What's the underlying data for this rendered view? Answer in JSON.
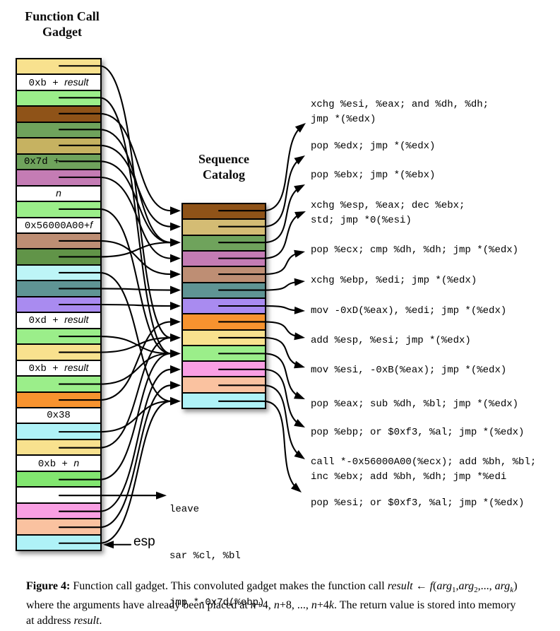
{
  "titles": {
    "left": [
      "Function Call",
      "Gadget"
    ],
    "catalog": [
      "Sequence",
      "Catalog"
    ]
  },
  "colors": {
    "line": "#000000",
    "yellow": "#F8E18E",
    "light_green": "#9BEE8A",
    "bright_green": "#82E670",
    "brown": "#8F5318",
    "med_green": "#6FA35C",
    "forest_green": "#619448",
    "khaki": "#C6B261",
    "tan": "#D4BC74",
    "orchid": "#C47CB4",
    "rosybrown": "#BE8E74",
    "teal": "#5F9494",
    "purple": "#A98BF0",
    "orange": "#F7932F",
    "cyan": "#AFF2F7",
    "light_cyan": "#BDF5F7",
    "pink": "#F99FE3",
    "peach": "#FAC2A0",
    "white": "#FFFFFF"
  },
  "left_stack": {
    "cells": [
      {
        "color": "yellow",
        "target": 9
      },
      {
        "color": "white",
        "label": [
          {
            "t": "0xb + "
          },
          {
            "t": "result",
            "v": true
          }
        ]
      },
      {
        "color": "light_green",
        "target": 10
      },
      {
        "color": "brown",
        "target": 1
      },
      {
        "color": "med_green",
        "target": 3
      },
      {
        "color": "khaki",
        "target": 2
      },
      {
        "color": "med_green",
        "label": [
          {
            "t": "0x7d +"
          }
        ],
        "target": 3,
        "label_left": true
      },
      {
        "color": "orchid",
        "target": 4
      },
      {
        "color": "white",
        "label": [
          {
            "t": "n",
            "v": true
          }
        ]
      },
      {
        "color": "light_green",
        "target": 10
      },
      {
        "color": "white",
        "label": [
          {
            "t": "0x56000A00+"
          },
          {
            "t": "f",
            "v": true
          }
        ]
      },
      {
        "color": "rosybrown",
        "target": 5
      },
      {
        "color": "forest_green",
        "target": 3
      },
      {
        "color": "light_cyan",
        "target": 13
      },
      {
        "color": "teal",
        "target": 6
      },
      {
        "color": "purple",
        "target": 7
      },
      {
        "color": "white",
        "label": [
          {
            "t": "0xd + "
          },
          {
            "t": "result",
            "v": true
          }
        ]
      },
      {
        "color": "light_green",
        "target": 10
      },
      {
        "color": "yellow",
        "target": 9
      },
      {
        "color": "white",
        "label": [
          {
            "t": "0xb + "
          },
          {
            "t": "result",
            "v": true
          }
        ]
      },
      {
        "color": "light_green",
        "target": 10
      },
      {
        "color": "orange",
        "target": 8
      },
      {
        "color": "white",
        "label": [
          {
            "t": "0x38"
          }
        ]
      },
      {
        "color": "cyan",
        "target": 13
      },
      {
        "color": "yellow",
        "target": 9
      },
      {
        "color": "white",
        "label": [
          {
            "t": "0xb + "
          },
          {
            "t": "n",
            "v": true
          }
        ]
      },
      {
        "color": "bright_green",
        "target": 10
      },
      {
        "color": "white",
        "target": "leave"
      },
      {
        "color": "pink",
        "target": 11
      },
      {
        "color": "peach",
        "target": 12
      },
      {
        "color": "cyan",
        "target": 13,
        "esp": true
      }
    ]
  },
  "catalog": {
    "rows": [
      {
        "color": "brown"
      },
      {
        "color": "tan"
      },
      {
        "color": "med_green"
      },
      {
        "color": "orchid"
      },
      {
        "color": "rosybrown"
      },
      {
        "color": "teal"
      },
      {
        "color": "purple"
      },
      {
        "color": "orange"
      },
      {
        "color": "yellow"
      },
      {
        "color": "light_green"
      },
      {
        "color": "pink"
      },
      {
        "color": "peach"
      },
      {
        "color": "cyan"
      }
    ]
  },
  "sequences": [
    {
      "lines": [
        "xchg %esi, %eax; and %dh, %dh;",
        "jmp *(%edx)"
      ]
    },
    {
      "lines": [
        "pop %edx; jmp *(%edx)"
      ]
    },
    {
      "lines": [
        "pop %ebx; jmp *(%ebx)"
      ]
    },
    {
      "lines": [
        "xchg %esp, %eax; dec %ebx;",
        "std; jmp *0(%esi)"
      ]
    },
    {
      "lines": [
        "pop %ecx; cmp %dh, %dh; jmp *(%edx)"
      ]
    },
    {
      "lines": [
        "xchg %ebp, %edi; jmp *(%edx)"
      ]
    },
    {
      "lines": [
        "mov -0xD(%eax), %edi; jmp *(%edx)"
      ]
    },
    {
      "lines": [
        "add %esp, %esi; jmp *(%edx)"
      ]
    },
    {
      "lines": [
        "mov %esi, -0xB(%eax); jmp *(%edx)"
      ]
    },
    {
      "lines": [
        "pop %eax; sub %dh, %bl; jmp *(%edx)"
      ]
    },
    {
      "lines": [
        "pop %ebp; or $0xf3, %al; jmp *(%edx)"
      ]
    },
    {
      "lines": [
        "call *-0x56000A00(%ecx); add %bh, %bl;",
        "inc %ebx; add %bh, %dh; jmp *%edi"
      ]
    },
    {
      "lines": [
        "pop %esi; or $0xf3, %al; jmp *(%edx)"
      ]
    }
  ],
  "leave_block": {
    "lines": [
      "leave",
      "sar %cl, %bl",
      "jmp *-0x7d(%ebp)"
    ]
  },
  "esp_label": "esp",
  "caption": {
    "lines": [
      [
        {
          "t": "Figure 4:",
          "b": true
        },
        {
          "t": " Function call gadget. This convoluted gadget makes the function call "
        },
        {
          "t": "result",
          "i": true
        },
        {
          "t": " ← "
        },
        {
          "t": "f",
          "i": true
        },
        {
          "t": "("
        },
        {
          "t": "arg",
          "i": true
        },
        {
          "t": "1",
          "sub": true
        },
        {
          "t": ","
        },
        {
          "t": "arg",
          "i": true
        },
        {
          "t": "2",
          "sub": true
        },
        {
          "t": ",..., "
        },
        {
          "t": "arg",
          "i": true
        },
        {
          "t": "k",
          "sub": true,
          "i": true
        },
        {
          "t": ")"
        }
      ],
      [
        {
          "t": "where the arguments have already been placed at "
        },
        {
          "t": "n",
          "i": true
        },
        {
          "t": "+4, "
        },
        {
          "t": "n",
          "i": true
        },
        {
          "t": "+8, ..., "
        },
        {
          "t": "n",
          "i": true
        },
        {
          "t": "+4"
        },
        {
          "t": "k",
          "i": true
        },
        {
          "t": ". The return value is stored into memory"
        }
      ],
      [
        {
          "t": "at address "
        },
        {
          "t": "result",
          "i": true
        },
        {
          "t": "."
        }
      ]
    ]
  }
}
